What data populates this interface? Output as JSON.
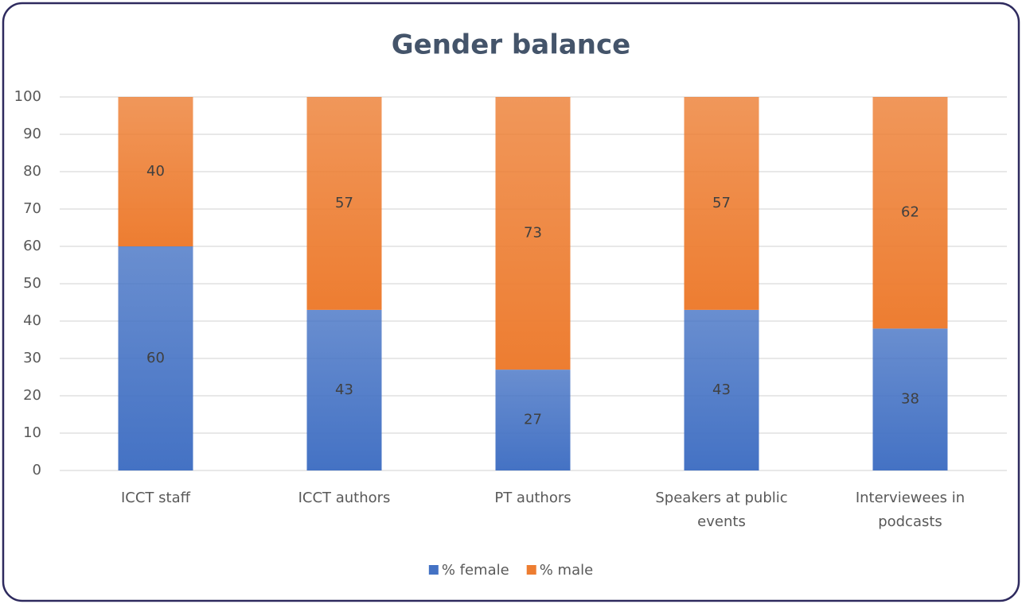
{
  "chart_data": {
    "type": "stacked_bar",
    "title": "Gender balance",
    "categories": [
      "ICCT staff",
      "ICCT authors",
      "PT authors",
      "Speakers at public events",
      "Interviewees in podcasts"
    ],
    "series": [
      {
        "name": "% female",
        "color": "#4472c4",
        "values": [
          60,
          43,
          27,
          43,
          38
        ]
      },
      {
        "name": "% male",
        "color": "#ed7d31",
        "values": [
          40,
          57,
          73,
          57,
          62
        ]
      }
    ],
    "ylim": [
      0,
      100
    ],
    "yticks": [
      0,
      10,
      20,
      30,
      40,
      50,
      60,
      70,
      80,
      90,
      100
    ],
    "grid": true,
    "legend": "bottom"
  }
}
